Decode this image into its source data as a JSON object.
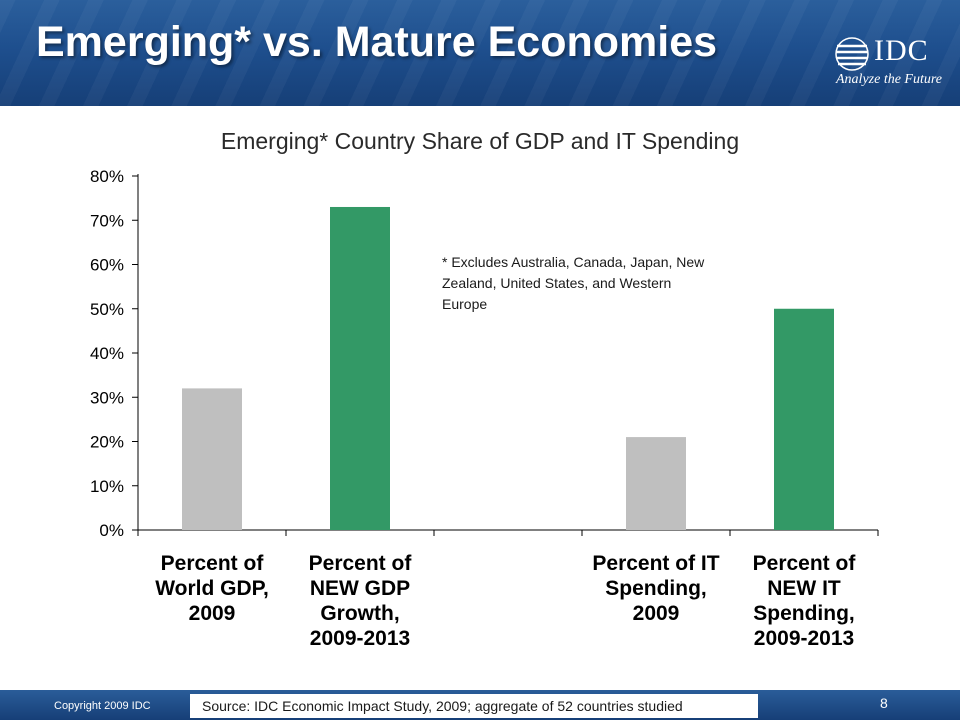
{
  "slide": {
    "title": "Emerging* vs. Mature Economies",
    "logo_text": "IDC",
    "logo_tagline": "Analyze the Future"
  },
  "footnote": "* Excludes Australia, Canada, Japan, New Zealand, United States, and Western Europe",
  "footer": {
    "copyright": "Copyright 2009 IDC",
    "source": "Source:  IDC Economic Impact Study, 2009; aggregate of 52 countries studied",
    "page_number": "8"
  },
  "colors": {
    "gray_bar": "#bfbfbf",
    "green_bar": "#339966",
    "header_blue": "#1e4f8e"
  },
  "chart_data": {
    "type": "bar",
    "title": "Emerging* Country Share of GDP and IT Spending",
    "categories": [
      [
        "Percent of",
        "World GDP,",
        "2009"
      ],
      [
        "Percent of",
        "NEW GDP",
        "Growth,",
        "2009-2013"
      ],
      [],
      [
        "Percent of IT",
        "Spending,",
        "2009"
      ],
      [
        "Percent of",
        "NEW IT",
        "Spending,",
        "2009-2013"
      ]
    ],
    "values": [
      0.32,
      0.73,
      null,
      0.21,
      0.5
    ],
    "bar_colors": [
      "#bfbfbf",
      "#339966",
      null,
      "#bfbfbf",
      "#339966"
    ],
    "ylim": [
      0,
      0.8
    ],
    "yticks": [
      0,
      0.1,
      0.2,
      0.3,
      0.4,
      0.5,
      0.6,
      0.7,
      0.8
    ],
    "ytick_labels": [
      "0%",
      "10%",
      "20%",
      "30%",
      "40%",
      "50%",
      "60%",
      "70%",
      "80%"
    ],
    "xlabel": "",
    "ylabel": "",
    "grid": false,
    "legend": "none"
  }
}
